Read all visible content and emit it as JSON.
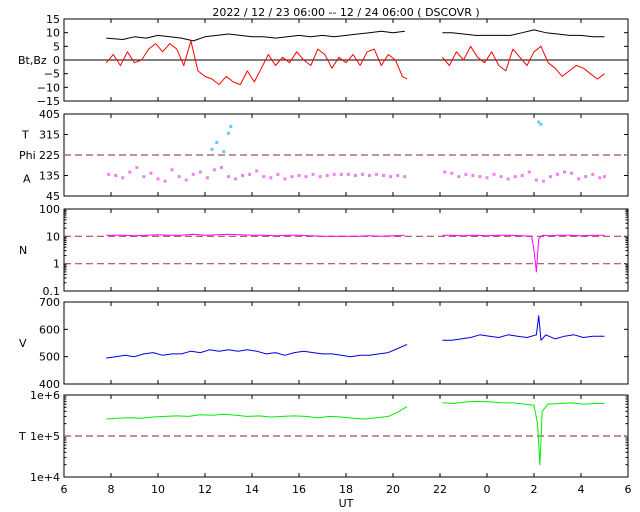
{
  "title": "2022 / 12 / 23   06:00 -- 12 / 24   06:00 ( DSCOVR )",
  "xlabel": "UT",
  "x_ticks": [
    "6",
    "8",
    "10",
    "12",
    "14",
    "16",
    "18",
    "20",
    "22",
    "0",
    "2",
    "4",
    "6"
  ],
  "colors": {
    "bt": "#000000",
    "bz": "#ff0000",
    "theta": "#66ccff",
    "phi": "#ee82ee",
    "density": "#ff00ff",
    "speed": "#0000dd",
    "temperature": "#00ee00",
    "dashed_ref": "#a05050"
  },
  "chart_data": [
    {
      "type": "line",
      "panel": "magnetic-field",
      "ylabel": "Bt,Bz",
      "ylim": [
        -15,
        15
      ],
      "y_ticks": [
        "15",
        "10",
        "5",
        "0",
        "−5",
        "−10",
        "−15"
      ],
      "x_range_hours": [
        6,
        30
      ],
      "data_gap": [
        20.6,
        22.1
      ],
      "zero_line": 0,
      "series": [
        {
          "key": "bt",
          "x": [
            7.8,
            8.5,
            9.0,
            9.5,
            10.0,
            10.5,
            11.0,
            11.5,
            12.0,
            12.5,
            13.0,
            13.5,
            14.0,
            14.5,
            15.0,
            15.5,
            16.0,
            16.5,
            17.0,
            17.5,
            18.0,
            18.5,
            19.0,
            19.5,
            20.0,
            20.5,
            22.1,
            22.5,
            23.0,
            23.5,
            24.0,
            24.5,
            25.0,
            25.5,
            26.0,
            26.5,
            27.0,
            27.5,
            28.0,
            28.5,
            29.0
          ],
          "y": [
            8,
            7.5,
            8.5,
            8,
            9,
            8.5,
            8,
            7,
            8.5,
            9,
            9.5,
            9,
            8.5,
            8.5,
            8,
            8.5,
            9,
            8.5,
            9,
            8.5,
            9,
            9.5,
            10,
            10.5,
            10,
            10.5,
            10,
            10,
            9.5,
            9,
            9,
            9,
            9,
            10,
            11,
            10,
            9.5,
            9,
            9,
            8.5,
            8.5
          ]
        },
        {
          "key": "bz",
          "x": [
            7.8,
            8.1,
            8.4,
            8.7,
            9.0,
            9.3,
            9.6,
            9.9,
            10.2,
            10.5,
            10.8,
            11.1,
            11.4,
            11.7,
            12.0,
            12.3,
            12.6,
            12.9,
            13.2,
            13.5,
            13.8,
            14.1,
            14.4,
            14.7,
            15.0,
            15.3,
            15.6,
            15.9,
            16.2,
            16.5,
            16.8,
            17.1,
            17.4,
            17.7,
            18.0,
            18.3,
            18.6,
            18.9,
            19.2,
            19.5,
            19.8,
            20.1,
            20.4,
            20.6,
            22.1,
            22.4,
            22.7,
            23.0,
            23.3,
            23.6,
            23.9,
            24.2,
            24.5,
            24.8,
            25.1,
            25.4,
            25.7,
            26.0,
            26.3,
            26.6,
            26.9,
            27.2,
            27.5,
            27.8,
            28.1,
            28.4,
            28.7,
            29.0
          ],
          "y": [
            -1,
            2,
            -2,
            3,
            -1,
            0,
            4,
            6,
            3,
            6,
            4,
            -2,
            7,
            -4,
            -6,
            -7,
            -9,
            -6,
            -8,
            -9,
            -4,
            -8,
            -3,
            2,
            -2,
            1,
            -1,
            3,
            0,
            -2,
            4,
            2,
            -3,
            1,
            -1,
            2,
            -2,
            3,
            4,
            -2,
            2,
            0,
            -6,
            -7,
            1,
            -2,
            3,
            0,
            5,
            1,
            -1,
            3,
            -2,
            -4,
            4,
            1,
            -2,
            3,
            5,
            -1,
            -3,
            -6,
            -4,
            -2,
            -3,
            -5,
            -7,
            -5
          ]
        }
      ]
    },
    {
      "type": "scatter",
      "panel": "angles",
      "ylabels": [
        "T",
        "Phi",
        "A"
      ],
      "ylim": [
        45,
        405
      ],
      "y_ticks": [
        "405",
        "315",
        "225",
        "135",
        "45"
      ],
      "ref_line": 225,
      "series": [
        {
          "key": "theta",
          "x": [
            12.3,
            12.5,
            12.8,
            13.0,
            13.1,
            26.2,
            26.3
          ],
          "y": [
            250,
            280,
            240,
            320,
            350,
            370,
            360
          ]
        },
        {
          "key": "phi",
          "x": [
            7.9,
            8.2,
            8.5,
            8.8,
            9.1,
            9.4,
            9.7,
            10.0,
            10.3,
            10.6,
            10.9,
            11.2,
            11.5,
            11.8,
            12.1,
            12.4,
            12.7,
            13.0,
            13.3,
            13.6,
            13.9,
            14.2,
            14.5,
            14.8,
            15.1,
            15.4,
            15.7,
            16.0,
            16.3,
            16.6,
            16.9,
            17.2,
            17.5,
            17.8,
            18.1,
            18.4,
            18.7,
            19.0,
            19.3,
            19.6,
            19.9,
            20.2,
            20.5,
            22.2,
            22.5,
            22.8,
            23.1,
            23.4,
            23.7,
            24.0,
            24.3,
            24.6,
            24.9,
            25.2,
            25.5,
            25.8,
            26.1,
            26.4,
            26.7,
            27.0,
            27.3,
            27.6,
            27.9,
            28.2,
            28.5,
            28.8,
            29.0
          ],
          "y": [
            140,
            135,
            125,
            150,
            170,
            130,
            145,
            120,
            110,
            160,
            130,
            115,
            140,
            150,
            125,
            160,
            170,
            130,
            120,
            135,
            140,
            155,
            130,
            125,
            140,
            120,
            130,
            135,
            130,
            140,
            130,
            135,
            140,
            140,
            140,
            135,
            140,
            135,
            140,
            135,
            130,
            135,
            130,
            150,
            145,
            130,
            140,
            135,
            130,
            125,
            140,
            130,
            120,
            130,
            135,
            150,
            115,
            110,
            130,
            140,
            150,
            145,
            120,
            130,
            140,
            125,
            130
          ]
        }
      ]
    },
    {
      "type": "line",
      "panel": "density",
      "ylabel": "N",
      "yscale": "log",
      "ylim": [
        0.1,
        100
      ],
      "y_ticks": [
        "100",
        "10",
        "1",
        "0.1"
      ],
      "ref_lines": [
        10,
        1
      ],
      "series": [
        {
          "key": "density",
          "x": [
            7.8,
            8.5,
            9.0,
            9.5,
            10.0,
            10.5,
            11.0,
            11.5,
            12.0,
            12.5,
            13.0,
            13.5,
            14.0,
            14.5,
            15.0,
            15.5,
            16.0,
            16.5,
            17.0,
            17.5,
            18.0,
            18.5,
            19.0,
            19.5,
            20.0,
            20.5,
            22.1,
            22.5,
            23.0,
            23.5,
            24.0,
            24.5,
            25.0,
            25.5,
            25.9,
            26.0,
            26.1,
            26.2,
            26.3,
            26.4,
            26.6,
            27.0,
            27.5,
            28.0,
            28.5,
            29.0
          ],
          "y": [
            11,
            11,
            10.5,
            11,
            11.5,
            11,
            11,
            12,
            11,
            11.5,
            12,
            11.5,
            11,
            11,
            10.5,
            11,
            11,
            10.5,
            10,
            10,
            10,
            10,
            10.5,
            10,
            10.5,
            11,
            11,
            11,
            10.5,
            11,
            10.5,
            11,
            11,
            10.5,
            10,
            3,
            0.5,
            8,
            10,
            11,
            10.5,
            11,
            11,
            10.5,
            11,
            11
          ]
        }
      ]
    },
    {
      "type": "line",
      "panel": "speed",
      "ylabel": "V",
      "ylim": [
        400,
        700
      ],
      "y_ticks": [
        "700",
        "600",
        "500",
        "400"
      ],
      "series": [
        {
          "key": "speed",
          "x": [
            7.8,
            8.2,
            8.6,
            9.0,
            9.4,
            9.8,
            10.2,
            10.6,
            11.0,
            11.4,
            11.8,
            12.2,
            12.6,
            13.0,
            13.4,
            13.8,
            14.2,
            14.6,
            15.0,
            15.4,
            15.8,
            16.2,
            16.6,
            17.0,
            17.4,
            17.8,
            18.2,
            18.6,
            19.0,
            19.4,
            19.8,
            20.2,
            20.6,
            22.1,
            22.5,
            22.9,
            23.3,
            23.7,
            24.1,
            24.5,
            24.9,
            25.3,
            25.7,
            26.1,
            26.2,
            26.3,
            26.5,
            26.9,
            27.3,
            27.7,
            28.1,
            28.5,
            29.0
          ],
          "y": [
            495,
            500,
            505,
            500,
            510,
            515,
            505,
            510,
            510,
            520,
            515,
            525,
            520,
            525,
            520,
            525,
            520,
            510,
            515,
            505,
            515,
            520,
            515,
            510,
            510,
            505,
            500,
            505,
            505,
            510,
            515,
            530,
            545,
            560,
            560,
            565,
            570,
            580,
            575,
            570,
            580,
            575,
            570,
            580,
            650,
            560,
            580,
            565,
            575,
            580,
            570,
            575,
            575
          ]
        }
      ]
    },
    {
      "type": "line",
      "panel": "temperature",
      "ylabel": "T",
      "yscale": "log",
      "ylim": [
        10000,
        1000000
      ],
      "y_ticks": [
        "1e+6",
        "1e+5",
        "1e+4"
      ],
      "ref_line": 100000,
      "series": [
        {
          "key": "temperature",
          "x": [
            7.8,
            8.3,
            8.8,
            9.3,
            9.8,
            10.3,
            10.8,
            11.3,
            11.8,
            12.3,
            12.8,
            13.3,
            13.8,
            14.3,
            14.8,
            15.3,
            15.8,
            16.3,
            16.8,
            17.3,
            17.8,
            18.3,
            18.8,
            19.3,
            19.8,
            20.2,
            20.6,
            22.1,
            22.6,
            23.1,
            23.6,
            24.1,
            24.6,
            25.1,
            25.6,
            26.0,
            26.15,
            26.25,
            26.35,
            26.6,
            27.1,
            27.6,
            28.1,
            28.6,
            29.0
          ],
          "y": [
            260000,
            270000,
            280000,
            270000,
            290000,
            300000,
            310000,
            300000,
            330000,
            320000,
            340000,
            320000,
            300000,
            310000,
            290000,
            300000,
            310000,
            300000,
            280000,
            300000,
            290000,
            270000,
            260000,
            280000,
            300000,
            380000,
            520000,
            650000,
            620000,
            680000,
            700000,
            680000,
            650000,
            640000,
            600000,
            560000,
            200000,
            20000,
            400000,
            600000,
            620000,
            640000,
            600000,
            620000,
            620000
          ]
        }
      ]
    }
  ]
}
